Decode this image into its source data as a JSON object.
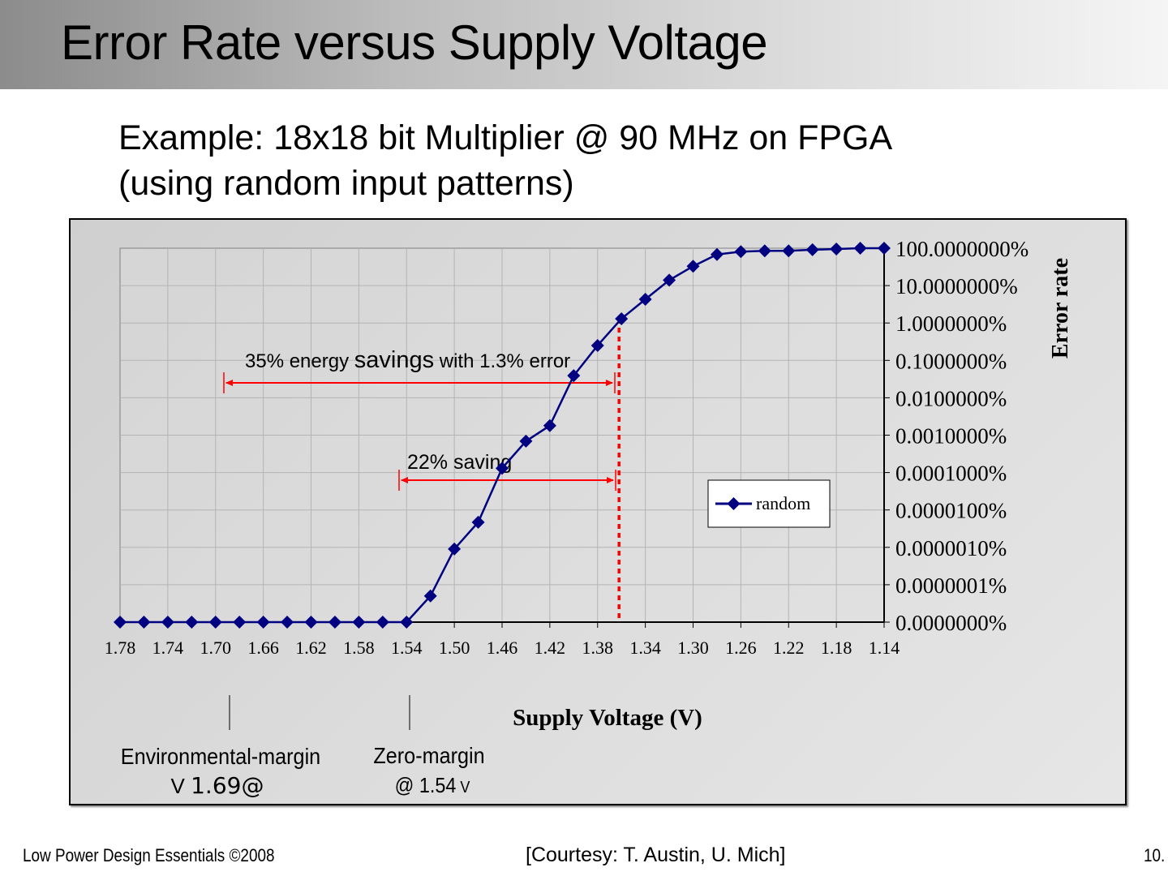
{
  "slide": {
    "title": "Error Rate versus Supply Voltage",
    "subtitle_line1": "Example: 18x18 bit Multiplier @ 90 MHz on FPGA",
    "subtitle_line2": "(using random input patterns)"
  },
  "footer": {
    "left": "Low Power Design Essentials ©2008",
    "center": "[Courtesy: T. Austin, U. Mich]",
    "page": "10."
  },
  "colors": {
    "series": "#000080",
    "annotation": "#ff0000",
    "grid": "#b4b4b4"
  },
  "chart_data": {
    "type": "line",
    "title": "",
    "xlabel": "Supply Voltage (V)",
    "ylabel": "Error rate",
    "yscale": "log",
    "x_reversed": true,
    "grid": true,
    "legend_position": "right-middle",
    "x_tick_labels": [
      "1.78",
      "1.74",
      "1.70",
      "1.66",
      "1.62",
      "1.58",
      "1.54",
      "1.50",
      "1.46",
      "1.42",
      "1.38",
      "1.34",
      "1.30",
      "1.26",
      "1.22",
      "1.18",
      "1.14"
    ],
    "y_tick_labels": [
      "0.0000000%",
      "0.0000001%",
      "0.0000010%",
      "0.0000100%",
      "0.0001000%",
      "0.0010000%",
      "0.0100000%",
      "0.1000000%",
      "1.0000000%",
      "10.0000000%",
      "100.0000000%"
    ],
    "series": [
      {
        "name": "random",
        "x": [
          1.78,
          1.76,
          1.74,
          1.72,
          1.7,
          1.68,
          1.66,
          1.64,
          1.62,
          1.6,
          1.58,
          1.56,
          1.54,
          1.52,
          1.5,
          1.48,
          1.46,
          1.44,
          1.42,
          1.4,
          1.38,
          1.36,
          1.34,
          1.32,
          1.3,
          1.28,
          1.26,
          1.24,
          1.22,
          1.2,
          1.18,
          1.16,
          1.14
        ],
        "y_percent": [
          0,
          0,
          0,
          0,
          0,
          0,
          0,
          0,
          0,
          0,
          0,
          0,
          0,
          5e-08,
          9e-07,
          4.7e-06,
          0.00013,
          0.00069,
          0.0018,
          0.039,
          0.25,
          1.3,
          4.3,
          14,
          33,
          68,
          81,
          85,
          85,
          91,
          95,
          100,
          100
        ]
      }
    ],
    "annotations": [
      {
        "text_a": "35% energy ",
        "text_b": "savings",
        "text_c": " with 1.3% error",
        "from_v": 1.69,
        "to_v": 1.36
      },
      {
        "text": "22% saving",
        "from_v": 1.54,
        "to_v": 1.36
      },
      {
        "label": "Environmental-margin",
        "sub_a": "V ",
        "sub_b": "1.69@",
        "at_v": 1.69
      },
      {
        "label": "Zero-margin",
        "sub_a": "@ 1.54",
        "sub_b": " V",
        "at_v": 1.54
      }
    ],
    "marker_line_v": 1.36
  }
}
